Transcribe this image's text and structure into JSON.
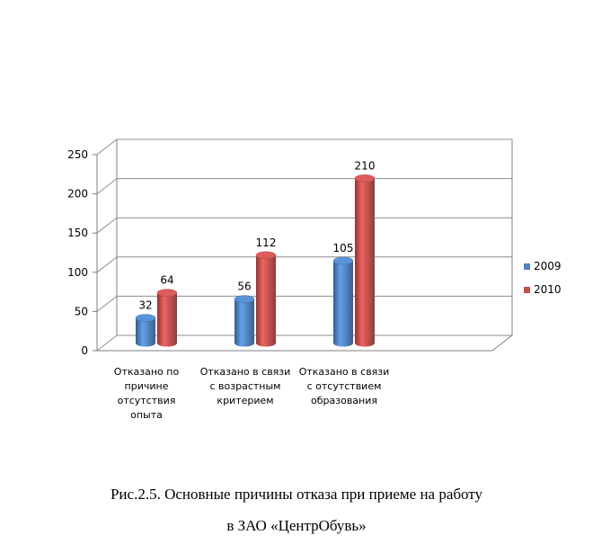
{
  "chart_data": {
    "type": "bar",
    "categories": [
      "Отказано по\nпричине\nотсутствия\nопыта",
      "Отказано в связи\nс возрастным\nкритерием",
      "Отказано в связи\nс отсутствием\nобразования",
      ""
    ],
    "series": [
      {
        "name": "2009",
        "values": [
          32,
          56,
          105,
          null
        ],
        "color": "#4F81BD"
      },
      {
        "name": "2010",
        "values": [
          64,
          112,
          210,
          null
        ],
        "color": "#C0504D"
      }
    ],
    "yticks": [
      0,
      50,
      100,
      150,
      200,
      250
    ],
    "ylim": [
      0,
      250
    ],
    "grid": true,
    "legend_position": "right",
    "three_d": true
  },
  "caption": {
    "line1": "Рис.2.5. Основные причины отказа при приеме на работу",
    "line2": "в ЗАО «ЦентрОбувь»"
  }
}
